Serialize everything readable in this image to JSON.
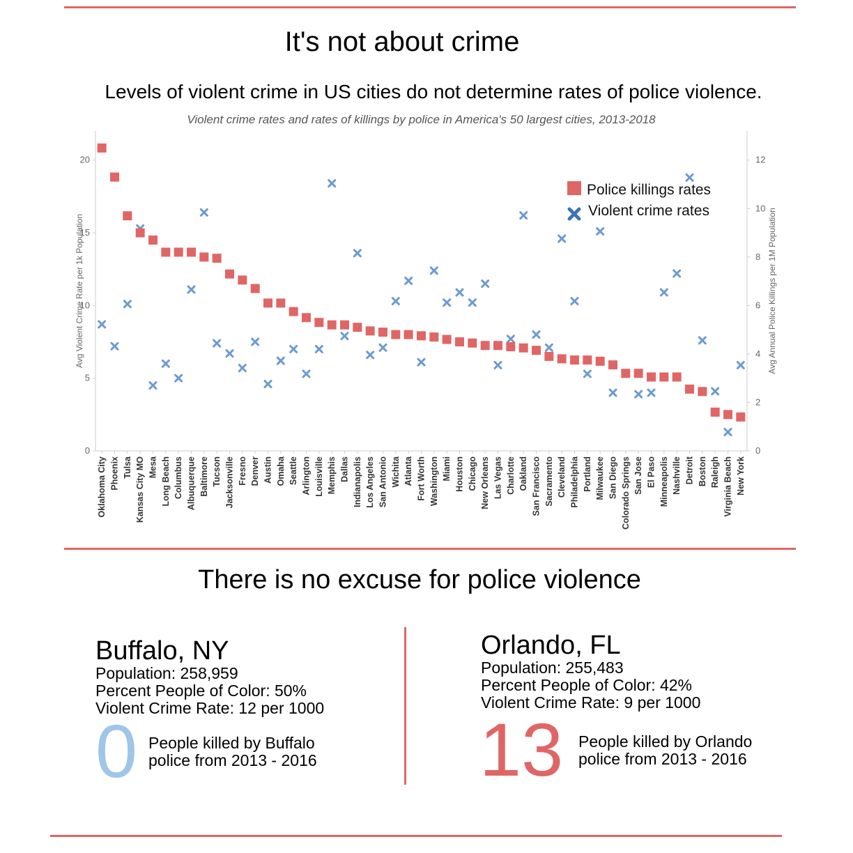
{
  "header": {
    "title": "It's not about crime",
    "subtitle": "Levels of violent crime in US cities do not determine rates of police violence."
  },
  "chart_data": {
    "type": "scatter",
    "title": "Violent crime rates and rates of killings by police in America's 50 largest cities, 2013-2018",
    "ylabel_left": "Avg Violent Crime Rate per 1k Population",
    "ylabel_right": "Avg Annual Police Killings per 1M Population",
    "ylim_left": [
      0,
      22
    ],
    "ylim_right": [
      0,
      13.2
    ],
    "yticks_left": [
      "0",
      "5",
      "10",
      "15",
      "20"
    ],
    "yticks_right": [
      "0",
      "2",
      "4",
      "6",
      "8",
      "10",
      "12"
    ],
    "legend_position": "top-right",
    "legend": {
      "killings": "Police killings rates",
      "crime": "Violent crime rates"
    },
    "colors": {
      "killings": "#e06666",
      "crime": "#6b9bd2",
      "axis": "#666666"
    },
    "categories": [
      "Oklahoma City",
      "Phoenix",
      "Tulsa",
      "Kansas City MO",
      "Mesa",
      "Long Beach",
      "Columbus",
      "Albuquerque",
      "Baltimore",
      "Tucson",
      "Jacksonville",
      "Fresno",
      "Denver",
      "Austin",
      "Omaha",
      "Seattle",
      "Arlington",
      "Louisville",
      "Memphis",
      "Dallas",
      "Indianapolis",
      "Los Angeles",
      "San Antonio",
      "Wichita",
      "Atlanta",
      "Fort Worth",
      "Washington",
      "Miami",
      "Houston",
      "Chicago",
      "New Orleans",
      "Las Vegas",
      "Charlotte",
      "Oakland",
      "San Francisco",
      "Sacramento",
      "Cleveland",
      "Philadelphia",
      "Portland",
      "Milwaukee",
      "San Diego",
      "Colorado Springs",
      "San Jose",
      "El Paso",
      "Minneapolis",
      "Nashville",
      "Detroit",
      "Boston",
      "Raleigh",
      "Virginia Beach",
      "New York"
    ],
    "series": [
      {
        "name": "Police killings rates",
        "axis": "right",
        "marker": "square",
        "values": [
          12.5,
          11.3,
          9.7,
          9.0,
          8.7,
          8.2,
          8.2,
          8.2,
          8.0,
          7.95,
          7.3,
          7.05,
          6.7,
          6.1,
          6.1,
          5.75,
          5.5,
          5.3,
          5.2,
          5.2,
          5.1,
          4.95,
          4.9,
          4.8,
          4.8,
          4.75,
          4.7,
          4.6,
          4.5,
          4.45,
          4.35,
          4.35,
          4.3,
          4.25,
          4.15,
          3.9,
          3.8,
          3.75,
          3.75,
          3.7,
          3.55,
          3.2,
          3.2,
          3.05,
          3.05,
          3.05,
          2.55,
          2.45,
          1.6,
          1.5,
          1.4
        ]
      },
      {
        "name": "Violent crime rates",
        "axis": "left",
        "marker": "x",
        "values": [
          8.7,
          7.2,
          10.1,
          15.3,
          4.5,
          6.0,
          5.0,
          11.1,
          16.4,
          7.4,
          6.7,
          5.7,
          7.5,
          4.6,
          6.2,
          7.0,
          5.3,
          7.0,
          18.4,
          7.9,
          13.6,
          6.6,
          7.1,
          10.3,
          11.7,
          6.1,
          12.4,
          10.2,
          10.9,
          10.2,
          11.5,
          5.9,
          7.7,
          16.2,
          8.0,
          7.1,
          14.6,
          10.3,
          5.3,
          15.1,
          4.0,
          5.3,
          3.9,
          4.0,
          10.9,
          12.2,
          18.8,
          7.6,
          4.1,
          1.3,
          5.9
        ]
      }
    ]
  },
  "section2": {
    "title": "There is no excuse for police violence"
  },
  "cities": [
    {
      "name": "Buffalo, NY",
      "population": "Population: 258,959",
      "poc": "Percent People of Color: 50%",
      "crime": "Violent Crime Rate: 12 per 1000",
      "killed": "0",
      "killed_line1": "People killed by Buffalo",
      "killed_line2": "police from 2013 - 2016",
      "color": "#9fc5e8"
    },
    {
      "name": "Orlando, FL",
      "population": "Population: 255,483",
      "poc": "Percent People of Color: 42%",
      "crime": "Violent Crime Rate: 9 per 1000",
      "killed": "13",
      "killed_line1": "People killed by Orlando",
      "killed_line2": "police from 2013 - 2016",
      "color": "#e06666"
    }
  ]
}
